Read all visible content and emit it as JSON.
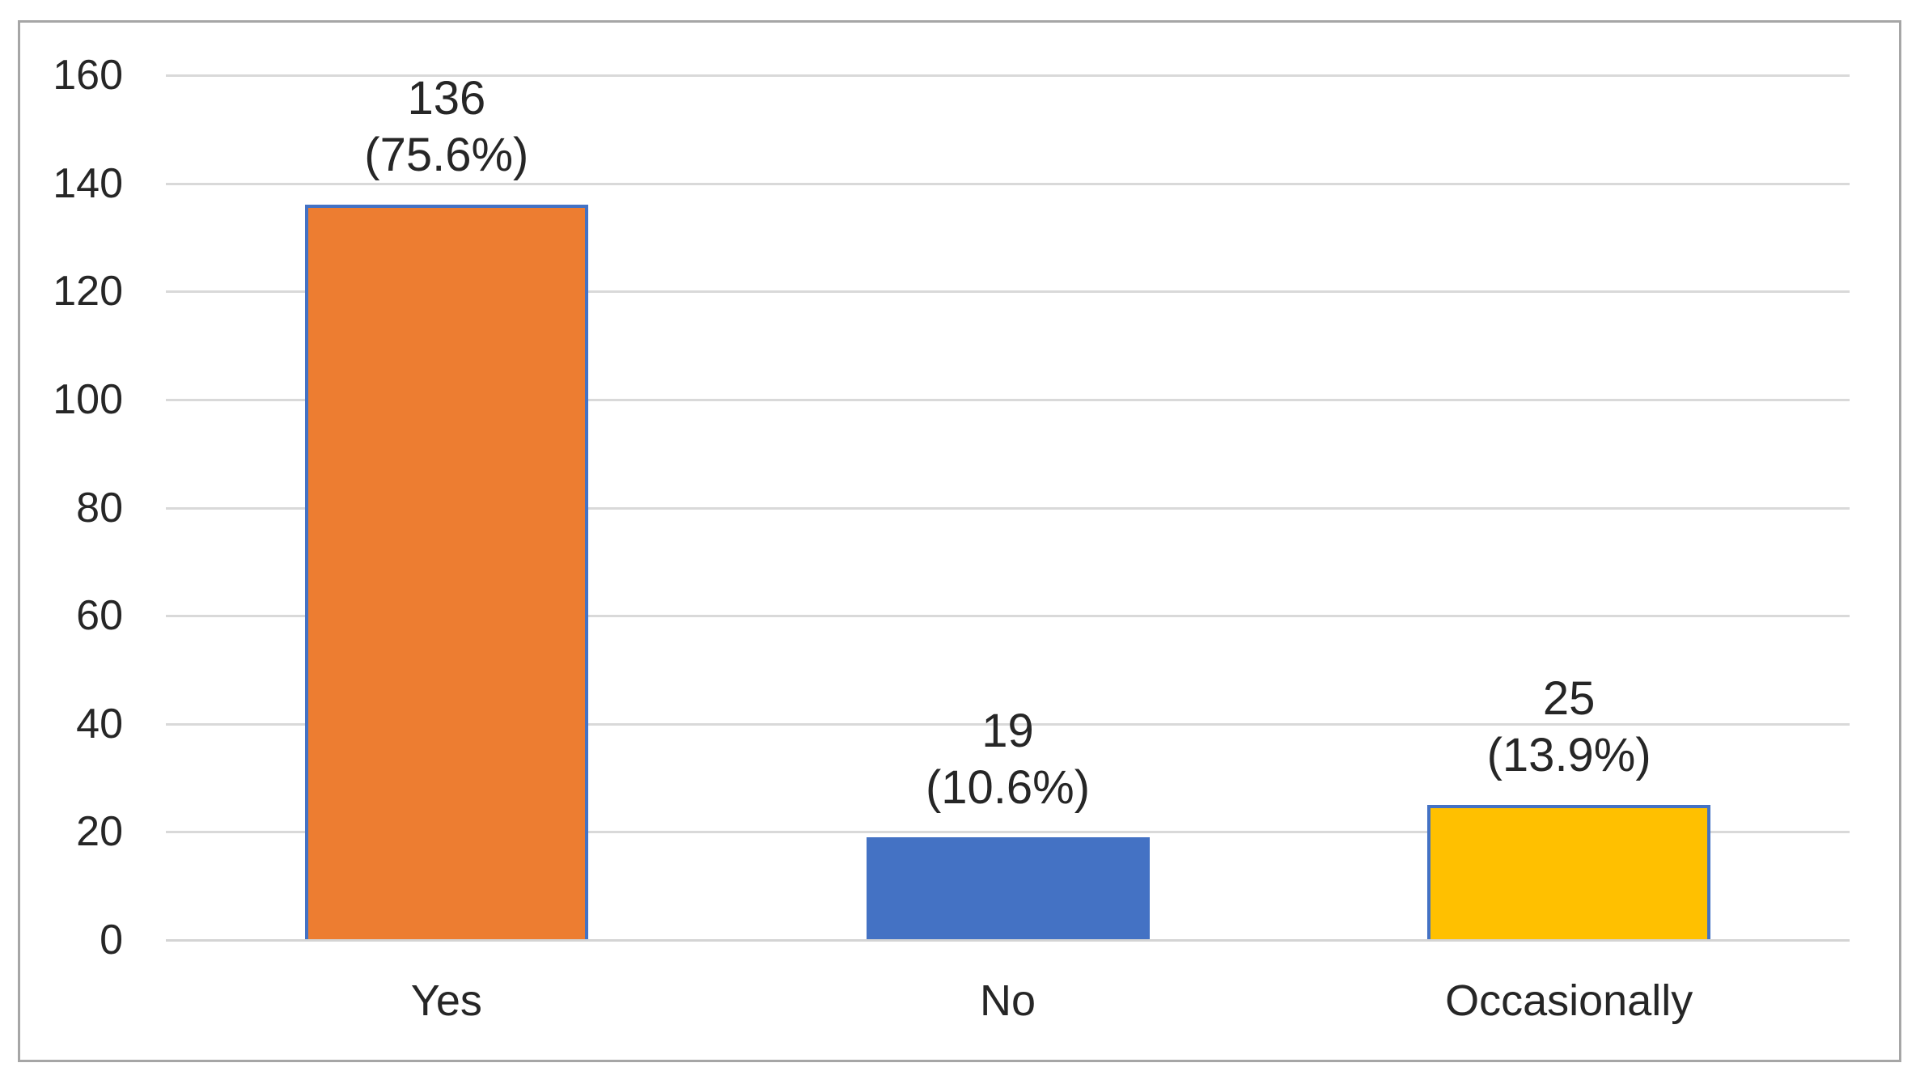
{
  "chart_data": {
    "type": "bar",
    "title": "",
    "xlabel": "",
    "ylabel": "",
    "legend": false,
    "grid": true,
    "categories": [
      "Yes",
      "No",
      "Occasionally"
    ],
    "values": [
      136,
      19,
      25
    ],
    "bars": [
      {
        "category": "Yes",
        "value": 136,
        "label_value": "136",
        "label_percent": "(75.6%)",
        "color": "#ED7D31"
      },
      {
        "category": "No",
        "value": 19,
        "label_value": "19",
        "label_percent": "(10.6%)",
        "color": "#4472C4"
      },
      {
        "category": "Occasionally",
        "value": 25,
        "label_value": "25",
        "label_percent": "(13.9%)",
        "color": "#FFC000"
      }
    ],
    "y_axis": {
      "min": 0,
      "max": 160,
      "ticks": [
        0,
        20,
        40,
        60,
        80,
        100,
        120,
        140,
        160
      ]
    },
    "bar_border_color": "#4472C4",
    "gridline_color": "#D9D9D9",
    "axis_line_color": "#D4D4D4",
    "frame_border_color": "#A6A6A6",
    "text_color": "#262626",
    "background_color": "#FFFFFF"
  }
}
